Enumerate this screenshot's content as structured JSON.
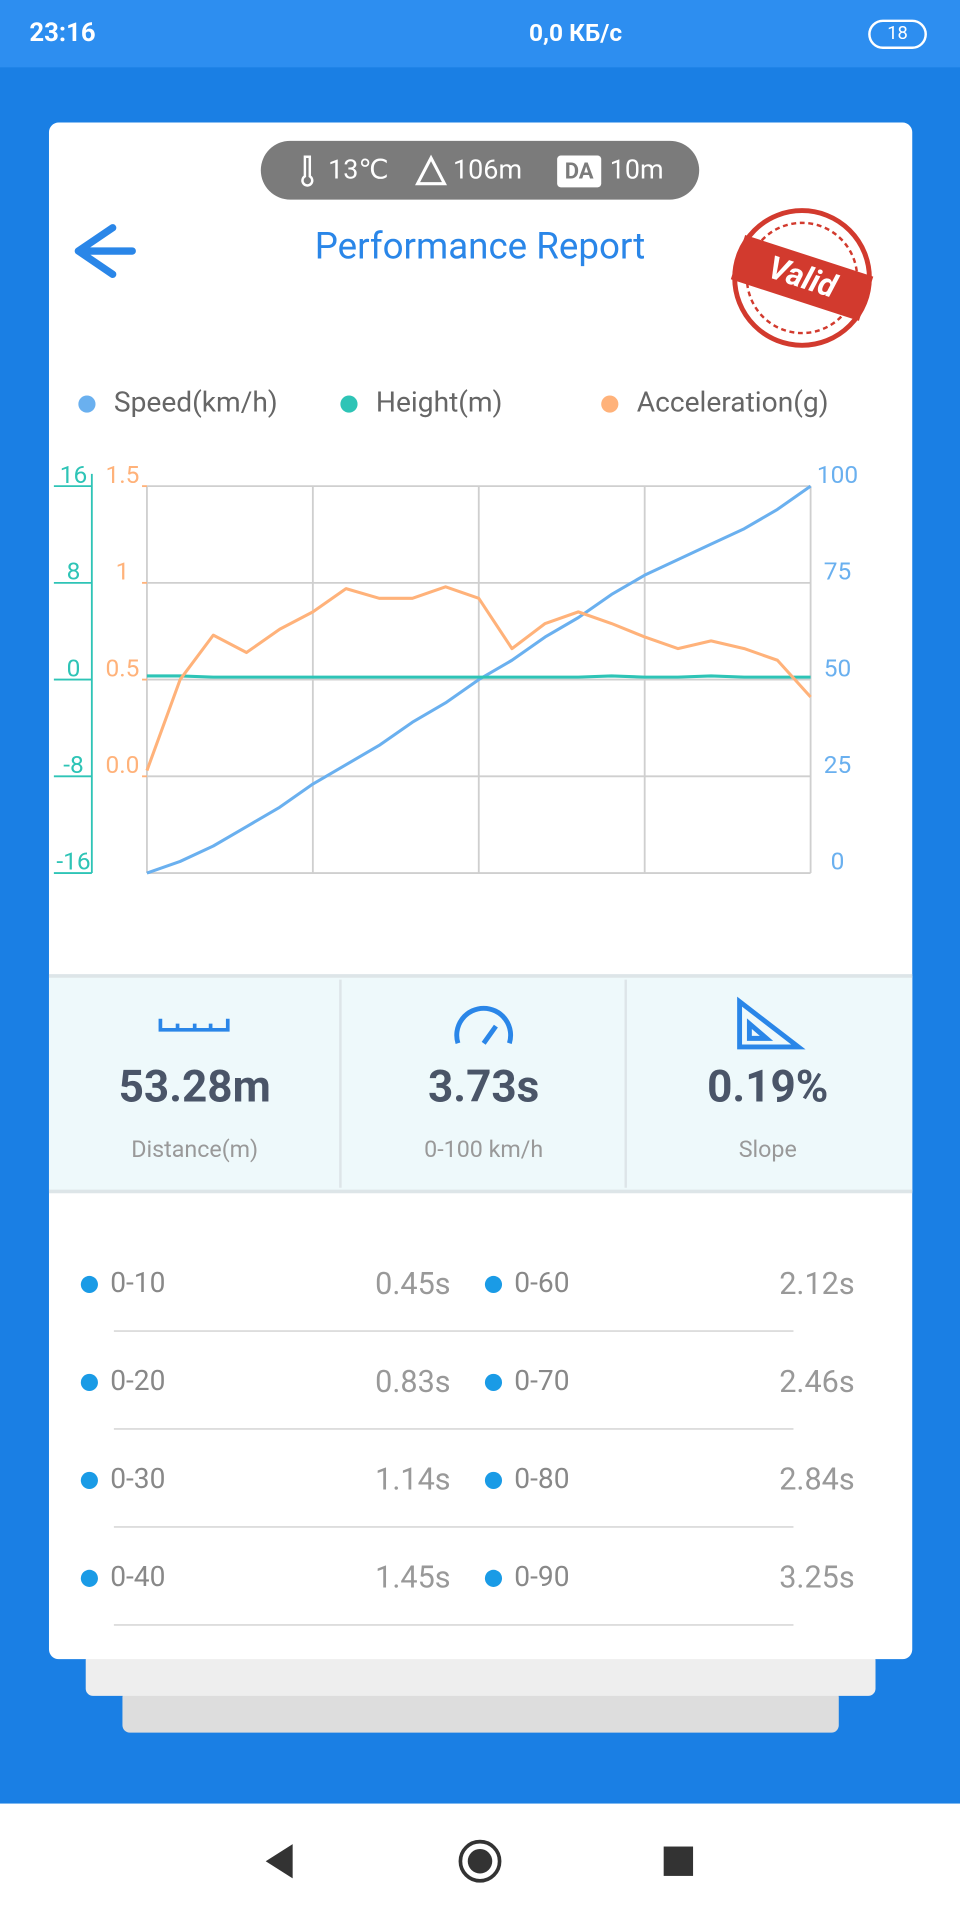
{
  "status_bar": {
    "time": "23:16",
    "network": "0,0 КБ/с",
    "battery": "18"
  },
  "conditions": {
    "temperature": "13℃",
    "altitude": "106m",
    "density_altitude_badge": "DA",
    "density_altitude": "10m"
  },
  "header": {
    "title": "Performance Report",
    "stamp": "Valid"
  },
  "chart_data": {
    "type": "line",
    "grid": true,
    "ylim": [
      -16,
      16
    ],
    "yticks": [
      -16,
      -8,
      0,
      8,
      16
    ],
    "y2lim": [
      0,
      100
    ],
    "y2ticks": [
      0,
      25,
      50,
      75,
      100
    ],
    "y3lim": [
      -0.5,
      1.5
    ],
    "y3ticks": [
      {
        "value": 0,
        "label": "0.0"
      },
      0.5,
      1,
      1.5
    ],
    "series": [
      {
        "name": "Speed(km/h)",
        "color": "#6ab0ef",
        "axis": "y2",
        "values": [
          0,
          3,
          7,
          12,
          17,
          23,
          28,
          33,
          39,
          44,
          50,
          55,
          61,
          66,
          72,
          77,
          81,
          85,
          89,
          94,
          100
        ]
      },
      {
        "name": "Height(m)",
        "color": "#2ec4b6",
        "axis": "y",
        "values": [
          0.3,
          0.3,
          0.2,
          0.2,
          0.2,
          0.2,
          0.2,
          0.2,
          0.2,
          0.2,
          0.2,
          0.2,
          0.2,
          0.2,
          0.3,
          0.2,
          0.2,
          0.3,
          0.2,
          0.2,
          0.2
        ]
      },
      {
        "name": "Acceleration(g)",
        "color": "#ffb27a",
        "axis": "y3",
        "values": [
          0.03,
          0.5,
          0.73,
          0.64,
          0.76,
          0.85,
          0.97,
          0.92,
          0.92,
          0.98,
          0.92,
          0.66,
          0.79,
          0.85,
          0.79,
          0.72,
          0.66,
          0.7,
          0.66,
          0.6,
          0.41
        ]
      }
    ]
  },
  "stats": [
    {
      "value": "53.28m",
      "label": "Distance(m)"
    },
    {
      "value": "3.73s",
      "label": "0-100 km/h"
    },
    {
      "value": "0.19%",
      "label": "Slope"
    }
  ],
  "splits": {
    "rows": [
      [
        "0-10",
        "0.45s",
        "0-60",
        "2.12s"
      ],
      [
        "0-20",
        "0.83s",
        "0-70",
        "2.46s"
      ],
      [
        "0-30",
        "1.14s",
        "0-80",
        "2.84s"
      ],
      [
        "0-40",
        "1.45s",
        "0-90",
        "3.25s"
      ]
    ]
  }
}
